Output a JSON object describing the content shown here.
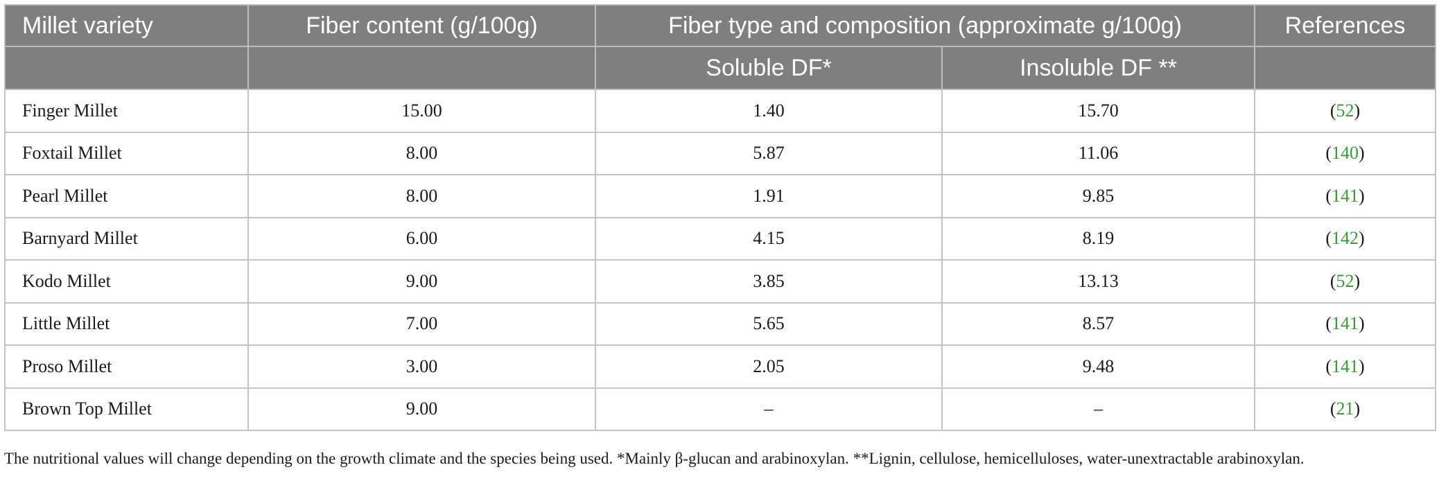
{
  "headers": {
    "variety": "Millet variety",
    "fiber_content": "Fiber content (g/100g)",
    "fiber_type": "Fiber type and composition (approximate g/100g)",
    "references": "References",
    "soluble": "Soluble DF*",
    "insoluble": "Insoluble DF **"
  },
  "rows": [
    {
      "variety": "Finger Millet",
      "fiber": "15.00",
      "soluble": "1.40",
      "insoluble": "15.70",
      "ref": "52"
    },
    {
      "variety": "Foxtail Millet",
      "fiber": "8.00",
      "soluble": "5.87",
      "insoluble": "11.06",
      "ref": "140"
    },
    {
      "variety": "Pearl Millet",
      "fiber": "8.00",
      "soluble": "1.91",
      "insoluble": "9.85",
      "ref": "141"
    },
    {
      "variety": "Barnyard Millet",
      "fiber": "6.00",
      "soluble": "4.15",
      "insoluble": "8.19",
      "ref": "142"
    },
    {
      "variety": "Kodo Millet",
      "fiber": "9.00",
      "soluble": "3.85",
      "insoluble": "13.13",
      "ref": "52"
    },
    {
      "variety": "Little Millet",
      "fiber": "7.00",
      "soluble": "5.65",
      "insoluble": "8.57",
      "ref": "141"
    },
    {
      "variety": "Proso Millet",
      "fiber": "3.00",
      "soluble": "2.05",
      "insoluble": "9.48",
      "ref": "141"
    },
    {
      "variety": "Brown Top Millet",
      "fiber": "9.00",
      "soluble": "–",
      "insoluble": "–",
      "ref": "21"
    }
  ],
  "footnote": "The nutritional values will change depending on the growth climate and the species being used. *Mainly β-glucan and arabinoxylan. **Lignin, cellulose, hemicelluloses, water-unextractable arabinoxylan.",
  "colors": {
    "header_bg": "#7f7f7f",
    "reference_link": "#3a9a3a"
  }
}
